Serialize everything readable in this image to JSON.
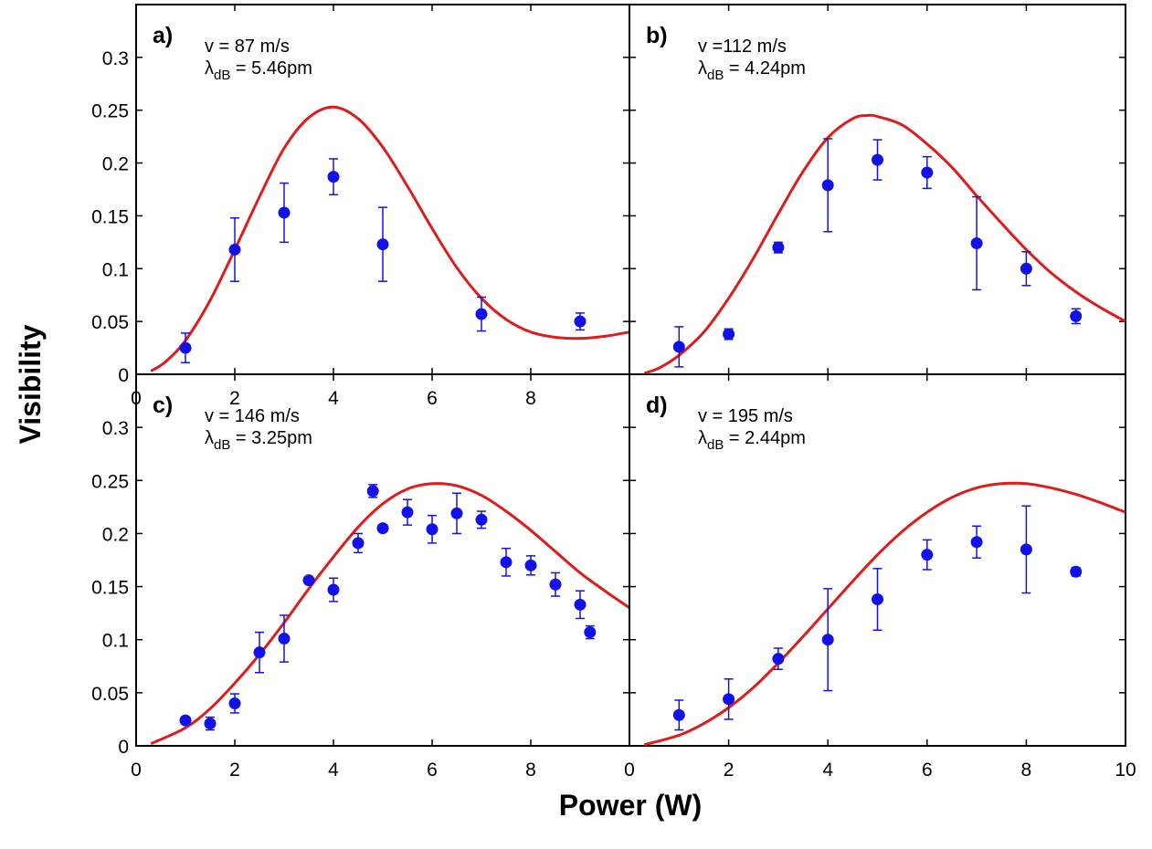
{
  "figure": {
    "xlabel": "Power (W)",
    "ylabel": "Visibility",
    "colors": {
      "fit": "#e01b1b",
      "data": "#1212e8",
      "axes": "#000000"
    }
  },
  "chart_data": [
    {
      "panel": "a)",
      "type": "scatter",
      "velocity_text": "v = 87 m/s",
      "wavelength_symbol": "λ",
      "wavelength_subscript": "dB",
      "wavelength_value": " = 5.46pm",
      "xlim": [
        0,
        10
      ],
      "ylim": [
        0,
        0.35
      ],
      "xticks": [
        "0",
        "2",
        "4",
        "6",
        "8"
      ],
      "yticks": [
        "0",
        "0.05",
        "0.1",
        "0.15",
        "0.2",
        "0.25",
        "0.3"
      ],
      "series": [
        {
          "kind": "data-with-errorbars",
          "x": [
            1,
            2,
            3,
            4,
            5,
            7,
            9
          ],
          "y": [
            0.025,
            0.118,
            0.153,
            0.187,
            0.123,
            0.057,
            0.05
          ],
          "err": [
            0.014,
            0.03,
            0.028,
            0.017,
            0.035,
            0.016,
            0.008
          ]
        },
        {
          "kind": "fit-curve",
          "x": [
            0.3,
            0.6,
            1.0,
            1.5,
            2.0,
            2.5,
            3.0,
            3.5,
            4.0,
            4.5,
            5.0,
            5.5,
            6.0,
            6.5,
            7.0,
            7.5,
            8.0,
            8.5,
            9.0,
            9.5,
            10.0
          ],
          "y": [
            0.003,
            0.012,
            0.032,
            0.07,
            0.118,
            0.168,
            0.214,
            0.243,
            0.253,
            0.242,
            0.215,
            0.178,
            0.138,
            0.101,
            0.072,
            0.052,
            0.04,
            0.035,
            0.034,
            0.036,
            0.04
          ]
        }
      ]
    },
    {
      "panel": "b)",
      "type": "scatter",
      "velocity_text": "v =112 m/s",
      "wavelength_symbol": "λ",
      "wavelength_subscript": "dB",
      "wavelength_value": " = 4.24pm",
      "xlim": [
        0,
        10
      ],
      "ylim": [
        0,
        0.35
      ],
      "xticks": [],
      "yticks": [],
      "series": [
        {
          "kind": "data-with-errorbars",
          "x": [
            1,
            2,
            3,
            4,
            5,
            6,
            7,
            8,
            9
          ],
          "y": [
            0.026,
            0.038,
            0.12,
            0.179,
            0.203,
            0.191,
            0.124,
            0.1,
            0.055
          ],
          "err": [
            0.019,
            0.005,
            0.005,
            0.044,
            0.019,
            0.015,
            0.044,
            0.016,
            0.007
          ]
        },
        {
          "kind": "fit-curve",
          "x": [
            0.3,
            0.6,
            1.0,
            1.5,
            2.0,
            2.5,
            3.0,
            3.5,
            4.0,
            4.5,
            4.8,
            5.0,
            5.5,
            6.0,
            6.5,
            7.0,
            7.5,
            8.0,
            8.5,
            9.0,
            9.5,
            10.0
          ],
          "y": [
            0.001,
            0.006,
            0.018,
            0.04,
            0.072,
            0.11,
            0.152,
            0.192,
            0.224,
            0.242,
            0.245,
            0.244,
            0.236,
            0.218,
            0.196,
            0.169,
            0.143,
            0.118,
            0.096,
            0.078,
            0.063,
            0.05
          ]
        }
      ]
    },
    {
      "panel": "c)",
      "type": "scatter",
      "velocity_text": "v = 146 m/s",
      "wavelength_symbol": "λ",
      "wavelength_subscript": "dB",
      "wavelength_value": " = 3.25pm",
      "xlim": [
        0,
        10
      ],
      "ylim": [
        0,
        0.35
      ],
      "xticks": [
        "0",
        "2",
        "4",
        "6",
        "8"
      ],
      "yticks": [
        "0",
        "0.05",
        "0.1",
        "0.15",
        "0.2",
        "0.25",
        "0.3"
      ],
      "series": [
        {
          "kind": "data-with-errorbars",
          "x": [
            1,
            1.5,
            2,
            2.5,
            3,
            3.5,
            4,
            4.5,
            4.8,
            5,
            5.5,
            6,
            6.5,
            7,
            7.5,
            8,
            8.5,
            9,
            9.2
          ],
          "y": [
            0.024,
            0.021,
            0.04,
            0.088,
            0.101,
            0.156,
            0.147,
            0.191,
            0.24,
            0.205,
            0.22,
            0.204,
            0.219,
            0.213,
            0.173,
            0.17,
            0.152,
            0.133,
            0.107
          ],
          "err": [
            0.003,
            0.006,
            0.009,
            0.019,
            0.022,
            0.002,
            0.011,
            0.009,
            0.006,
            0.003,
            0.012,
            0.013,
            0.019,
            0.008,
            0.013,
            0.009,
            0.011,
            0.013,
            0.006
          ]
        },
        {
          "kind": "fit-curve",
          "x": [
            0.3,
            1.0,
            1.5,
            2.0,
            2.5,
            3.0,
            3.5,
            4.0,
            4.5,
            5.0,
            5.5,
            6.0,
            6.5,
            7.0,
            7.5,
            8.0,
            8.5,
            9.0,
            9.5,
            10.0
          ],
          "y": [
            0.002,
            0.017,
            0.035,
            0.059,
            0.086,
            0.116,
            0.148,
            0.178,
            0.206,
            0.228,
            0.242,
            0.247,
            0.245,
            0.236,
            0.221,
            0.203,
            0.183,
            0.163,
            0.146,
            0.13
          ]
        }
      ]
    },
    {
      "panel": "d)",
      "type": "scatter",
      "velocity_text": "v = 195 m/s",
      "wavelength_symbol": "λ",
      "wavelength_subscript": "dB",
      "wavelength_value": " = 2.44pm",
      "xlim": [
        0,
        10
      ],
      "ylim": [
        0,
        0.35
      ],
      "xticks": [
        "0",
        "2",
        "4",
        "6",
        "8",
        "10"
      ],
      "yticks": [],
      "series": [
        {
          "kind": "data-with-errorbars",
          "x": [
            1,
            2,
            3,
            4,
            5,
            6,
            7,
            8,
            9
          ],
          "y": [
            0.029,
            0.044,
            0.082,
            0.1,
            0.138,
            0.18,
            0.192,
            0.185,
            0.164
          ],
          "err": [
            0.014,
            0.019,
            0.01,
            0.048,
            0.029,
            0.014,
            0.015,
            0.041,
            0.004
          ]
        },
        {
          "kind": "fit-curve",
          "x": [
            0.3,
            1.0,
            1.5,
            2.0,
            2.5,
            3.0,
            3.5,
            4.0,
            4.5,
            5.0,
            5.5,
            6.0,
            6.5,
            7.0,
            7.5,
            8.0,
            8.5,
            9.0,
            9.5,
            10.0
          ],
          "y": [
            0.001,
            0.01,
            0.021,
            0.036,
            0.055,
            0.078,
            0.103,
            0.129,
            0.155,
            0.18,
            0.202,
            0.22,
            0.234,
            0.243,
            0.247,
            0.247,
            0.243,
            0.237,
            0.229,
            0.22
          ]
        }
      ]
    }
  ]
}
